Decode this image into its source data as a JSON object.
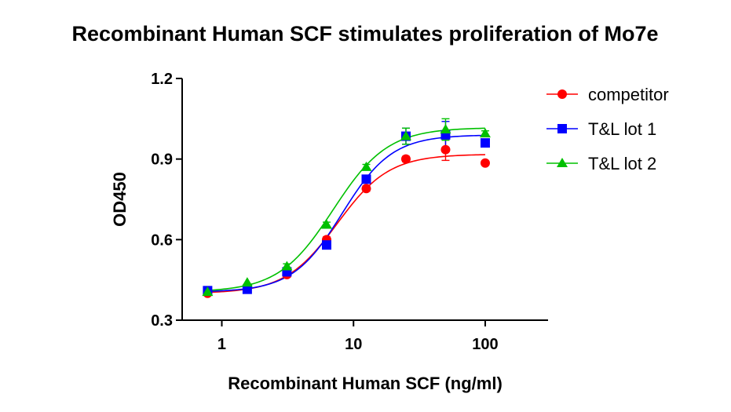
{
  "chart_data": {
    "type": "scatter",
    "title": "Recombinant Human SCF stimulates proliferation of Mo7e",
    "xlabel": "Recombinant Human SCF (ng/ml)",
    "ylabel": "OD450",
    "xscale": "log",
    "xlim": [
      0.5,
      300
    ],
    "ylim": [
      0.3,
      1.2
    ],
    "xticks": [
      1,
      10,
      100
    ],
    "xtick_labels": [
      "1",
      "10",
      "100"
    ],
    "yticks": [
      0.3,
      0.6,
      0.9,
      1.2
    ],
    "ytick_labels": [
      "0.3",
      "0.6",
      "0.9",
      "1.2"
    ],
    "legend_position": "top-right",
    "series": [
      {
        "name": "competitor",
        "color": "#ff0000",
        "marker": "circle",
        "x": [
          0.78,
          1.56,
          3.12,
          6.25,
          12.5,
          25,
          50,
          100
        ],
        "y": [
          0.4,
          0.425,
          0.47,
          0.6,
          0.79,
          0.9,
          0.935,
          0.885
        ],
        "error": [
          0.005,
          0.005,
          0.01,
          0.01,
          0.01,
          0.01,
          0.04,
          0.005
        ],
        "fit": {
          "bottom": 0.4,
          "top": 0.918,
          "ec50": 7.5,
          "hill": 2.2
        }
      },
      {
        "name": "T&L lot 1",
        "color": "#0000ff",
        "marker": "square",
        "x": [
          0.78,
          1.56,
          3.12,
          6.25,
          12.5,
          25,
          50,
          100
        ],
        "y": [
          0.41,
          0.415,
          0.48,
          0.58,
          0.825,
          0.985,
          0.99,
          0.96
        ],
        "error": [
          0.005,
          0.005,
          0.015,
          0.01,
          0.01,
          0.03,
          0.05,
          0.005
        ],
        "fit": {
          "bottom": 0.405,
          "top": 0.99,
          "ec50": 8.2,
          "hill": 2.3
        }
      },
      {
        "name": "T&L lot 2",
        "color": "#00c000",
        "marker": "triangle",
        "x": [
          0.78,
          1.56,
          3.12,
          6.25,
          12.5,
          25,
          50,
          100
        ],
        "y": [
          0.405,
          0.44,
          0.5,
          0.655,
          0.87,
          0.985,
          1.01,
          0.995
        ],
        "error": [
          0.005,
          0.005,
          0.01,
          0.01,
          0.01,
          0.03,
          0.04,
          0.01
        ],
        "fit": {
          "bottom": 0.405,
          "top": 1.017,
          "ec50": 7.0,
          "hill": 2.1
        }
      }
    ]
  }
}
